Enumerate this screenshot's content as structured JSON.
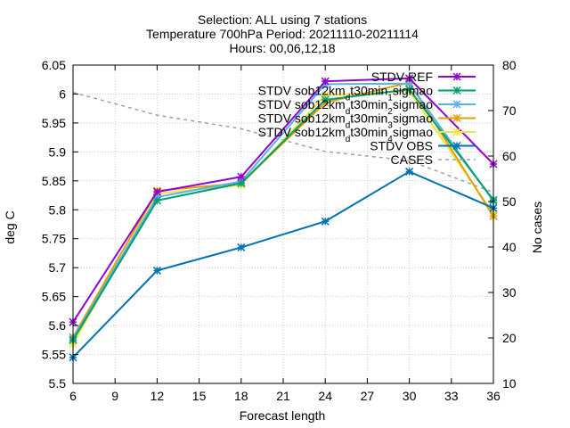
{
  "chart_data": {
    "type": "line",
    "title_lines": [
      "Selection: ALL using     7 stations",
      "Temperature 700hPa   Period: 20211110-20211114",
      "Hours: 00,06,12,18"
    ],
    "xlabel": "Forecast length",
    "ylabel": "deg C",
    "y2label": "No cases",
    "x": [
      6,
      12,
      18,
      24,
      30,
      36
    ],
    "xlim": [
      6,
      36
    ],
    "xticks": [
      "6",
      "9",
      "12",
      "15",
      "18",
      "21",
      "24",
      "27",
      "30",
      "33",
      "36"
    ],
    "ylim": [
      5.5,
      6.05
    ],
    "yticks": [
      "5.5",
      "5.55",
      "5.6",
      "5.65",
      "5.7",
      "5.75",
      "5.8",
      "5.85",
      "5.9",
      "5.95",
      "6",
      "6.05"
    ],
    "y2lim": [
      10,
      80
    ],
    "y2ticks": [
      "10",
      "20",
      "30",
      "40",
      "50",
      "60",
      "70",
      "80"
    ],
    "grid": true,
    "legend_position": "top-right",
    "series": [
      {
        "name": "STDV REF",
        "color": "#9400d3",
        "axis": "left",
        "marker": "star",
        "values": [
          5.606,
          5.831,
          5.857,
          6.022,
          6.027,
          5.879
        ]
      },
      {
        "name": "STDV sob12km_dt30min_1sigmao",
        "color": "#009e73",
        "axis": "left",
        "marker": "star",
        "values": [
          5.575,
          5.816,
          5.846,
          5.99,
          6.008,
          5.817
        ]
      },
      {
        "name": "STDV sob12km_dt30min_2sigmao",
        "color": "#56b4e9",
        "axis": "left",
        "marker": "star",
        "values": [
          5.578,
          5.822,
          5.849,
          6.017,
          6.018,
          5.815
        ]
      },
      {
        "name": "STDV sob12km_dt30min_3sigmao",
        "color": "#e69f00",
        "axis": "left",
        "marker": "star",
        "values": [
          5.58,
          5.833,
          5.846,
          5.985,
          6.02,
          5.789
        ]
      },
      {
        "name": "STDV sob12km_dt30min_4sigmao",
        "color": "#f0e442",
        "axis": "left",
        "marker": "star",
        "values": [
          5.568,
          5.828,
          5.843,
          5.998,
          6.005,
          5.793
        ]
      },
      {
        "name": "STDV OBS",
        "color": "#0072b2",
        "axis": "left",
        "marker": "star",
        "values": [
          5.545,
          5.695,
          5.735,
          5.78,
          5.866,
          5.803
        ]
      },
      {
        "name": "CASES",
        "color": "#a0a0a0",
        "axis": "right",
        "marker": "none",
        "dash": true,
        "values": [
          74,
          69,
          66,
          61,
          59,
          52
        ]
      }
    ],
    "legend_entries": [
      {
        "prefix": "STDV REF",
        "sub": "",
        "rest": ""
      },
      {
        "prefix": "STDV sob12km",
        "sub": "d",
        "rest": "t30min",
        "sub2": "1",
        "tail": "sigmao"
      },
      {
        "prefix": "STDV sob12km",
        "sub": "d",
        "rest": "t30min",
        "sub2": "2",
        "tail": "sigmao"
      },
      {
        "prefix": "STDV sob12km",
        "sub": "d",
        "rest": "t30min",
        "sub2": "3",
        "tail": "sigmao"
      },
      {
        "prefix": "STDV sob12km",
        "sub": "d",
        "rest": "t30min",
        "sub2": "4",
        "tail": "sigmao"
      },
      {
        "prefix": "STDV OBS",
        "sub": "",
        "rest": ""
      },
      {
        "prefix": "CASES",
        "sub": "",
        "rest": ""
      }
    ]
  }
}
